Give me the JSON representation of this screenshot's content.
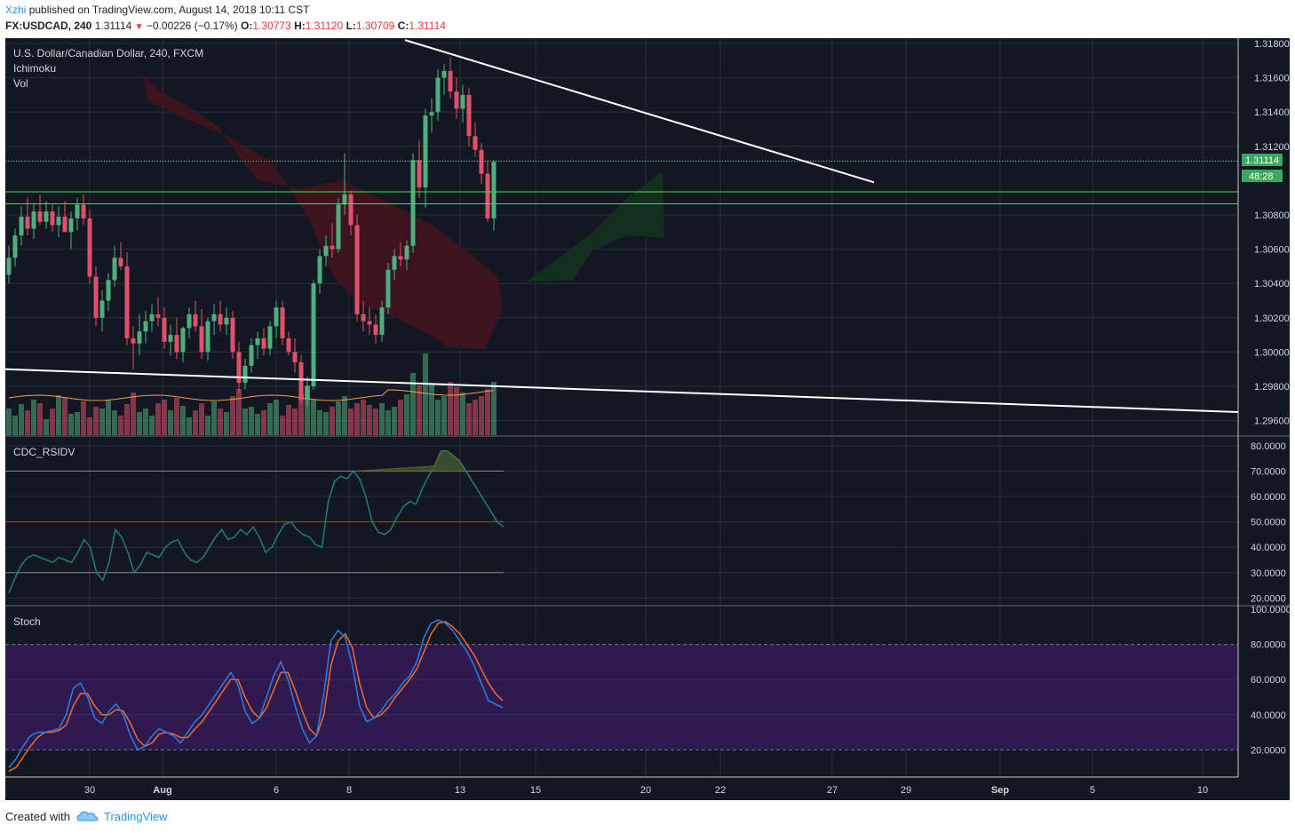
{
  "header": {
    "author": "Xzhi",
    "published_text": "published on TradingView.com, August 14, 2018 10:11 CST",
    "symbol": "FX:USDCAD, 240",
    "last_price": "1.31114",
    "change_arrow": "▼",
    "change": "−0.00226 (−0.17%)",
    "open_label": "O:",
    "open_value": "1.30773",
    "high_label": "H:",
    "high_value": "1.31120",
    "low_label": "L:",
    "low_value": "1.30709",
    "close_label": "C:",
    "close_value": "1.31114"
  },
  "panes": {
    "main_title": "U.S. Dollar/Canadian Dollar, 240, FXCM",
    "indicator_1": "Ichimoku",
    "indicator_2": "Vol",
    "rsi_title": "CDC_RSIDV",
    "stoch_title": "Stoch",
    "price_badge": "1.31114",
    "countdown_badge": "48:28"
  },
  "footer": {
    "created_with": "Created with",
    "brand": "TradingView"
  },
  "colors": {
    "background": "#131722",
    "grid": "#2a2e39",
    "bull": "#4caf7d",
    "bear": "#e0506a",
    "cloud_bear": "#3e1420",
    "cloud_bull": "#12301f",
    "support_green": "#3ce63c",
    "trendline": "#ffffff",
    "stoch_k": "#2f7de1",
    "stoch_d": "#f26b2a",
    "stoch_band": "#2e1a4f",
    "rsi_line": "#1f7d7b",
    "volume_ma": "#f0a040"
  },
  "chart_data": [
    {
      "type": "candlestick",
      "title": "U.S. Dollar/Canadian Dollar, 240, FXCM",
      "timeframe": "240",
      "price_axis": {
        "ticks": [
          "1.31800",
          "1.31600",
          "1.31400",
          "1.31200",
          "1.31114",
          "1.30800",
          "1.30600",
          "1.30400",
          "1.30200",
          "1.30000",
          "1.29800",
          "1.29600"
        ],
        "range": [
          1.2955,
          1.3181
        ]
      },
      "time_axis": {
        "ticks": [
          "30",
          "Aug",
          "6",
          "8",
          "13",
          "15",
          "20",
          "22",
          "27",
          "29",
          "Sep",
          "5",
          "10"
        ]
      },
      "ohlc": [
        [
          1.3045,
          1.3062,
          1.304,
          1.3055
        ],
        [
          1.3055,
          1.3072,
          1.305,
          1.3068
        ],
        [
          1.3068,
          1.3085,
          1.3062,
          1.3079
        ],
        [
          1.3079,
          1.309,
          1.3068,
          1.3072
        ],
        [
          1.3072,
          1.3087,
          1.3066,
          1.3082
        ],
        [
          1.3082,
          1.3092,
          1.3074,
          1.3076
        ],
        [
          1.3076,
          1.3088,
          1.3072,
          1.3082
        ],
        [
          1.3082,
          1.3086,
          1.307,
          1.3074
        ],
        [
          1.3074,
          1.3085,
          1.3067,
          1.3079
        ],
        [
          1.3079,
          1.3088,
          1.3072,
          1.307
        ],
        [
          1.307,
          1.3082,
          1.306,
          1.3078
        ],
        [
          1.3078,
          1.309,
          1.3071,
          1.3086
        ],
        [
          1.3086,
          1.3092,
          1.3074,
          1.3078
        ],
        [
          1.3078,
          1.3083,
          1.304,
          1.3044
        ],
        [
          1.3044,
          1.305,
          1.3015,
          1.302
        ],
        [
          1.302,
          1.3036,
          1.3012,
          1.303
        ],
        [
          1.303,
          1.3046,
          1.3024,
          1.3042
        ],
        [
          1.3042,
          1.3062,
          1.3038,
          1.3055
        ],
        [
          1.3055,
          1.3064,
          1.3048,
          1.305
        ],
        [
          1.305,
          1.3058,
          1.3004,
          1.3008
        ],
        [
          1.3008,
          1.3015,
          1.299,
          1.3005
        ],
        [
          1.3005,
          1.3022,
          1.2998,
          1.3012
        ],
        [
          1.3012,
          1.3024,
          1.3005,
          1.3018
        ],
        [
          1.3018,
          1.3028,
          1.3012,
          1.3022
        ],
        [
          1.3022,
          1.3032,
          1.3015,
          1.302
        ],
        [
          1.302,
          1.3026,
          1.3002,
          1.3006
        ],
        [
          1.3006,
          1.3016,
          1.2998,
          1.301
        ],
        [
          1.301,
          1.302,
          1.2996,
          1.3
        ],
        [
          1.3,
          1.3015,
          1.2994,
          1.3014
        ],
        [
          1.3014,
          1.3026,
          1.3008,
          1.3022
        ],
        [
          1.3022,
          1.303,
          1.3012,
          1.3015
        ],
        [
          1.3015,
          1.3025,
          1.2996,
          1.3
        ],
        [
          1.3,
          1.302,
          1.2995,
          1.3018
        ],
        [
          1.3018,
          1.3028,
          1.301,
          1.3022
        ],
        [
          1.3022,
          1.303,
          1.3012,
          1.3016
        ],
        [
          1.3016,
          1.3026,
          1.301,
          1.302
        ],
        [
          1.302,
          1.3024,
          1.2996,
          1.3
        ],
        [
          1.3,
          1.3006,
          1.2976,
          1.2982
        ],
        [
          1.2982,
          1.2996,
          1.2978,
          1.2992
        ],
        [
          1.2992,
          1.3008,
          1.2988,
          1.3004
        ],
        [
          1.3004,
          1.3012,
          1.2996,
          1.3008
        ],
        [
          1.3008,
          1.3014,
          1.2998,
          1.3002
        ],
        [
          1.3002,
          1.3018,
          1.2998,
          1.3015
        ],
        [
          1.3015,
          1.303,
          1.3008,
          1.3026
        ],
        [
          1.3026,
          1.303,
          1.3004,
          1.3008
        ],
        [
          1.3008,
          1.3012,
          1.2998,
          1.3
        ],
        [
          1.3,
          1.3008,
          1.2988,
          1.2994
        ],
        [
          1.2994,
          1.2998,
          1.297,
          1.2972
        ],
        [
          1.2972,
          1.2986,
          1.2968,
          1.298
        ],
        [
          1.298,
          1.3042,
          1.2978,
          1.304
        ],
        [
          1.304,
          1.306,
          1.3034,
          1.3056
        ],
        [
          1.3056,
          1.3068,
          1.305,
          1.3062
        ],
        [
          1.3062,
          1.3075,
          1.3055,
          1.306
        ],
        [
          1.306,
          1.309,
          1.3058,
          1.3086
        ],
        [
          1.3086,
          1.3116,
          1.308,
          1.3092
        ],
        [
          1.3092,
          1.3094,
          1.3068,
          1.3074
        ],
        [
          1.3074,
          1.308,
          1.3018,
          1.3022
        ],
        [
          1.3022,
          1.303,
          1.3012,
          1.3018
        ],
        [
          1.3018,
          1.3026,
          1.301,
          1.3016
        ],
        [
          1.3016,
          1.3022,
          1.3005,
          1.301
        ],
        [
          1.301,
          1.303,
          1.3006,
          1.3026
        ],
        [
          1.3026,
          1.3052,
          1.3022,
          1.3048
        ],
        [
          1.3048,
          1.306,
          1.3042,
          1.3056
        ],
        [
          1.3056,
          1.3064,
          1.305,
          1.3054
        ],
        [
          1.3054,
          1.3065,
          1.3048,
          1.3062
        ],
        [
          1.3062,
          1.3116,
          1.3058,
          1.3112
        ],
        [
          1.3112,
          1.3124,
          1.309,
          1.3096
        ],
        [
          1.3096,
          1.3142,
          1.3084,
          1.3138
        ],
        [
          1.3138,
          1.3148,
          1.3128,
          1.314
        ],
        [
          1.314,
          1.3165,
          1.3135,
          1.316
        ],
        [
          1.316,
          1.3168,
          1.315,
          1.3164
        ],
        [
          1.3164,
          1.3172,
          1.3148,
          1.3152
        ],
        [
          1.3152,
          1.316,
          1.3136,
          1.3142
        ],
        [
          1.3142,
          1.3156,
          1.3134,
          1.315
        ],
        [
          1.315,
          1.3154,
          1.312,
          1.3126
        ],
        [
          1.3126,
          1.3134,
          1.3114,
          1.3118
        ],
        [
          1.3118,
          1.3122,
          1.3098,
          1.3104
        ],
        [
          1.3104,
          1.3112,
          1.3076,
          1.3078
        ],
        [
          1.3078,
          1.3112,
          1.3071,
          1.3111
        ]
      ],
      "volume_ma_present": true,
      "ichimoku_cloud_present": true,
      "horizontal_lines": [
        1.31114,
        1.30935,
        1.30865
      ],
      "trendlines": [
        {
          "from_price": 1.3182,
          "to_price": 1.3099
        },
        {
          "from_price": 1.299,
          "to_price": 1.2965
        }
      ]
    },
    {
      "type": "line",
      "title": "CDC_RSIDV",
      "y_ticks": [
        "80.0000",
        "70.0000",
        "60.0000",
        "50.0000",
        "40.0000",
        "30.0000",
        "20.0000"
      ],
      "ylim": [
        18,
        84
      ],
      "levels": [
        70,
        50,
        30
      ],
      "values": [
        22,
        28,
        33,
        36,
        37,
        36,
        35,
        34,
        36,
        35,
        34,
        38,
        43,
        40,
        30,
        27,
        34,
        47,
        44,
        38,
        30,
        33,
        38,
        37,
        36,
        40,
        42,
        43,
        38,
        35,
        34,
        36,
        40,
        44,
        47,
        43,
        44,
        47,
        45,
        48,
        44,
        38,
        40,
        45,
        49,
        50,
        47,
        45,
        44,
        41,
        40,
        58,
        66,
        68,
        67,
        70,
        67,
        60,
        50,
        46,
        45,
        47,
        52,
        56,
        58,
        57,
        63,
        68,
        72,
        78,
        78,
        76,
        74,
        70,
        66,
        62,
        58,
        54,
        50,
        48
      ]
    },
    {
      "type": "line",
      "title": "Stoch",
      "y_ticks": [
        "100.0000",
        "80.0000",
        "60.0000",
        "40.0000",
        "20.0000"
      ],
      "ylim": [
        2,
        102
      ],
      "band": [
        20,
        80
      ],
      "series": [
        {
          "values": [
            10,
            15,
            22,
            28,
            30,
            30,
            31,
            32,
            40,
            55,
            58,
            50,
            38,
            35,
            42,
            46,
            40,
            28,
            20,
            22,
            28,
            32,
            30,
            28,
            24,
            30,
            36,
            40,
            46,
            52,
            58,
            64,
            57,
            42,
            35,
            38,
            50,
            62,
            70,
            60,
            45,
            32,
            24,
            28,
            52,
            82,
            88,
            84,
            68,
            45,
            36,
            38,
            42,
            48,
            52,
            58,
            62,
            70,
            84,
            92,
            94,
            92,
            88,
            82,
            76,
            68,
            58,
            48,
            46,
            44
          ]
        },
        {
          "values": [
            8,
            10,
            16,
            22,
            27,
            30,
            30,
            31,
            34,
            45,
            52,
            52,
            45,
            40,
            40,
            43,
            42,
            35,
            26,
            22,
            24,
            29,
            30,
            29,
            27,
            27,
            32,
            36,
            42,
            48,
            54,
            60,
            60,
            50,
            42,
            38,
            44,
            54,
            64,
            64,
            54,
            42,
            32,
            28,
            40,
            68,
            82,
            86,
            78,
            58,
            44,
            38,
            40,
            44,
            50,
            55,
            60,
            66,
            76,
            86,
            92,
            93,
            90,
            86,
            80,
            74,
            66,
            58,
            52,
            48
          ]
        }
      ]
    }
  ]
}
